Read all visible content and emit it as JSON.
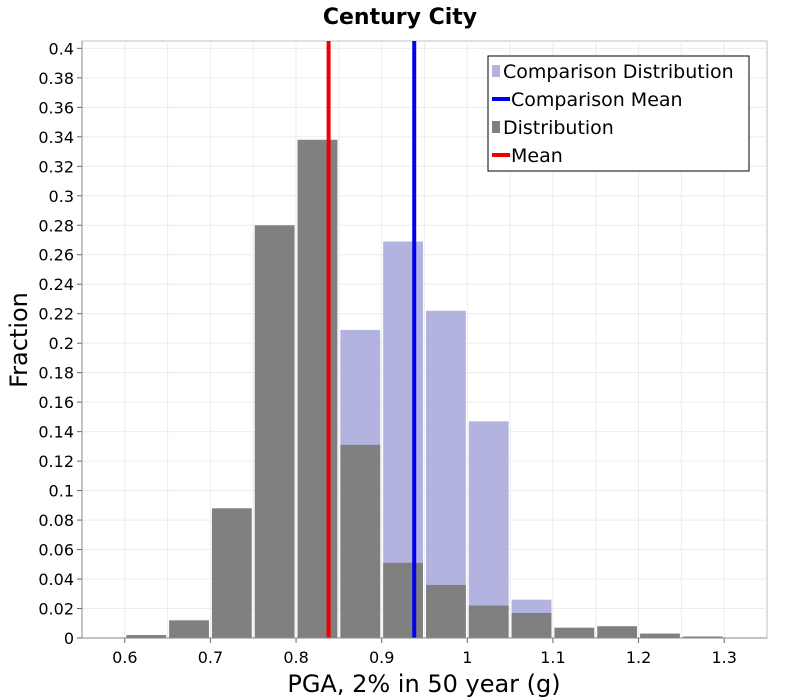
{
  "chart_data": {
    "type": "bar",
    "title": "Century City",
    "xlabel": "PGA, 2% in 50 year (g)",
    "ylabel": "Fraction",
    "xlim": [
      0.55,
      1.35
    ],
    "ylim": [
      0,
      0.405
    ],
    "xticks": [
      "0.6",
      "0.7",
      "0.8",
      "0.9",
      "1",
      "1.1",
      "1.2",
      "1.3"
    ],
    "yticks": [
      "0",
      "0.02",
      "0.04",
      "0.06",
      "0.08",
      "0.1",
      "0.12",
      "0.14",
      "0.16",
      "0.18",
      "0.2",
      "0.22",
      "0.24",
      "0.26",
      "0.28",
      "0.3",
      "0.32",
      "0.34",
      "0.36",
      "0.38",
      "0.4"
    ],
    "bin_width": 0.05,
    "grid": true,
    "legend_placement": "top-right",
    "series": [
      {
        "name": "Comparison Distribution",
        "kind": "bar",
        "color": "#b3b3e0",
        "x": [
          0.875,
          0.925,
          0.975,
          1.025,
          1.075
        ],
        "values": [
          0.209,
          0.269,
          0.222,
          0.147,
          0.026
        ]
      },
      {
        "name": "Comparison Mean",
        "kind": "vline",
        "color": "#0000ee",
        "value": 0.938
      },
      {
        "name": "Distribution",
        "kind": "bar",
        "color": "#808080",
        "x": [
          0.625,
          0.675,
          0.725,
          0.775,
          0.825,
          0.875,
          0.925,
          0.975,
          1.025,
          1.075,
          1.125,
          1.175,
          1.225,
          1.275
        ],
        "values": [
          0.002,
          0.012,
          0.088,
          0.28,
          0.338,
          0.131,
          0.051,
          0.036,
          0.022,
          0.017,
          0.007,
          0.008,
          0.003,
          0.001
        ]
      },
      {
        "name": "Mean",
        "kind": "vline",
        "color": "#ee0000",
        "value": 0.838
      }
    ]
  }
}
